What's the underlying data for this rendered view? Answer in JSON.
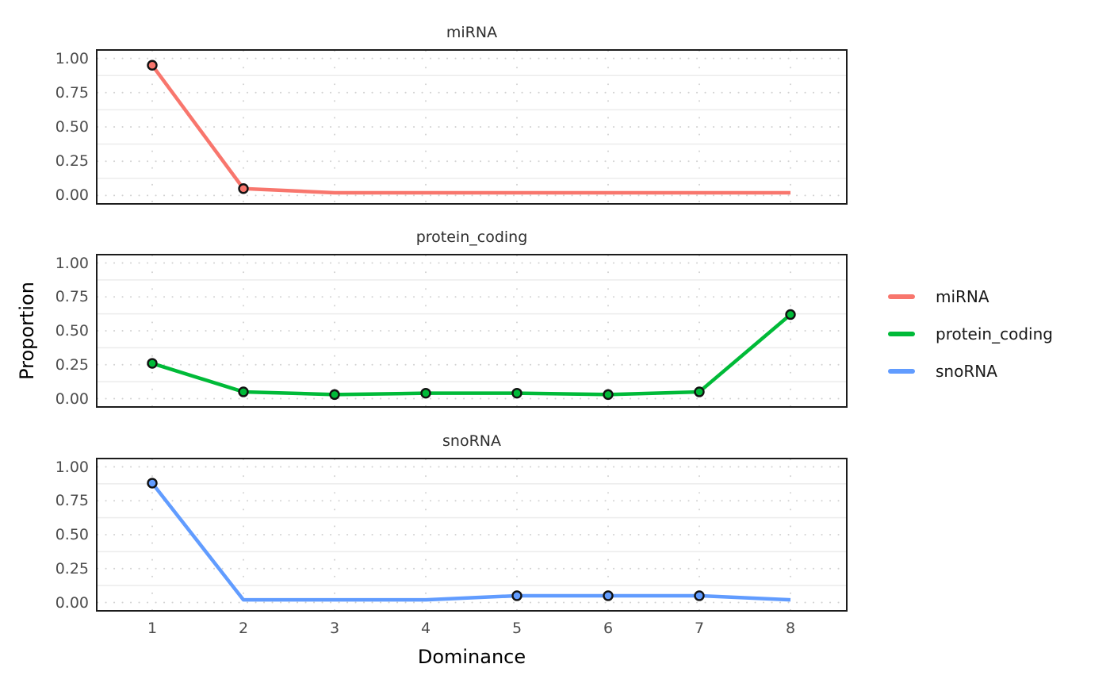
{
  "axes": {
    "x_label": "Dominance",
    "y_label": "Proportion",
    "x_ticks": [
      "1",
      "2",
      "3",
      "4",
      "5",
      "6",
      "7",
      "8"
    ],
    "y_tick_labels": [
      "1.00",
      "0.75",
      "0.50",
      "0.25",
      "0.00"
    ],
    "y_tick_values": [
      1.0,
      0.75,
      0.5,
      0.25,
      0.0
    ]
  },
  "legend": {
    "position": "right",
    "entries": [
      {
        "label": "miRNA",
        "color": "#F8766D"
      },
      {
        "label": "protein_coding",
        "color": "#00BA38"
      },
      {
        "label": "snoRNA",
        "color": "#619CFF"
      }
    ]
  },
  "chart_data": {
    "type": "line",
    "layout": "three stacked facet panels sharing the x axis",
    "x": [
      1,
      2,
      3,
      4,
      5,
      6,
      7,
      8
    ],
    "xlabel": "Dominance",
    "ylabel": "Proportion",
    "xlim": [
      1,
      8
    ],
    "ylim": [
      0,
      1
    ],
    "grid": "horizontal minor solid light gray; major horizontal and vertical gridlines dotted",
    "legend_position": "right",
    "facets": [
      {
        "title": "miRNA",
        "color": "#F8766D",
        "values": [
          0.95,
          0.05,
          0.02,
          0.02,
          0.02,
          0.02,
          0.02,
          0.02
        ],
        "marker_x": [
          1,
          2
        ]
      },
      {
        "title": "protein_coding",
        "color": "#00BA38",
        "values": [
          0.26,
          0.05,
          0.03,
          0.04,
          0.04,
          0.03,
          0.05,
          0.62
        ],
        "marker_x": [
          1,
          2,
          3,
          4,
          5,
          6,
          7,
          8
        ]
      },
      {
        "title": "snoRNA",
        "color": "#619CFF",
        "values": [
          0.88,
          0.02,
          0.02,
          0.02,
          0.05,
          0.05,
          0.05,
          0.02
        ],
        "marker_x": [
          1,
          5,
          6,
          7
        ]
      }
    ]
  },
  "style": {
    "background": "#FFFFFF",
    "panel_border": "#1C1C1C",
    "grid_major_dot": "#D2D2D2",
    "grid_minor": "#ECECEC",
    "tick_label_color": "#4D4D4D",
    "facet_title_color": "#2E2E2E",
    "axis_title_color": "#000000",
    "marker_stroke": "#111111",
    "line_width": 4.5,
    "marker_radius": 5.5,
    "marker_stroke_width": 2.4
  }
}
